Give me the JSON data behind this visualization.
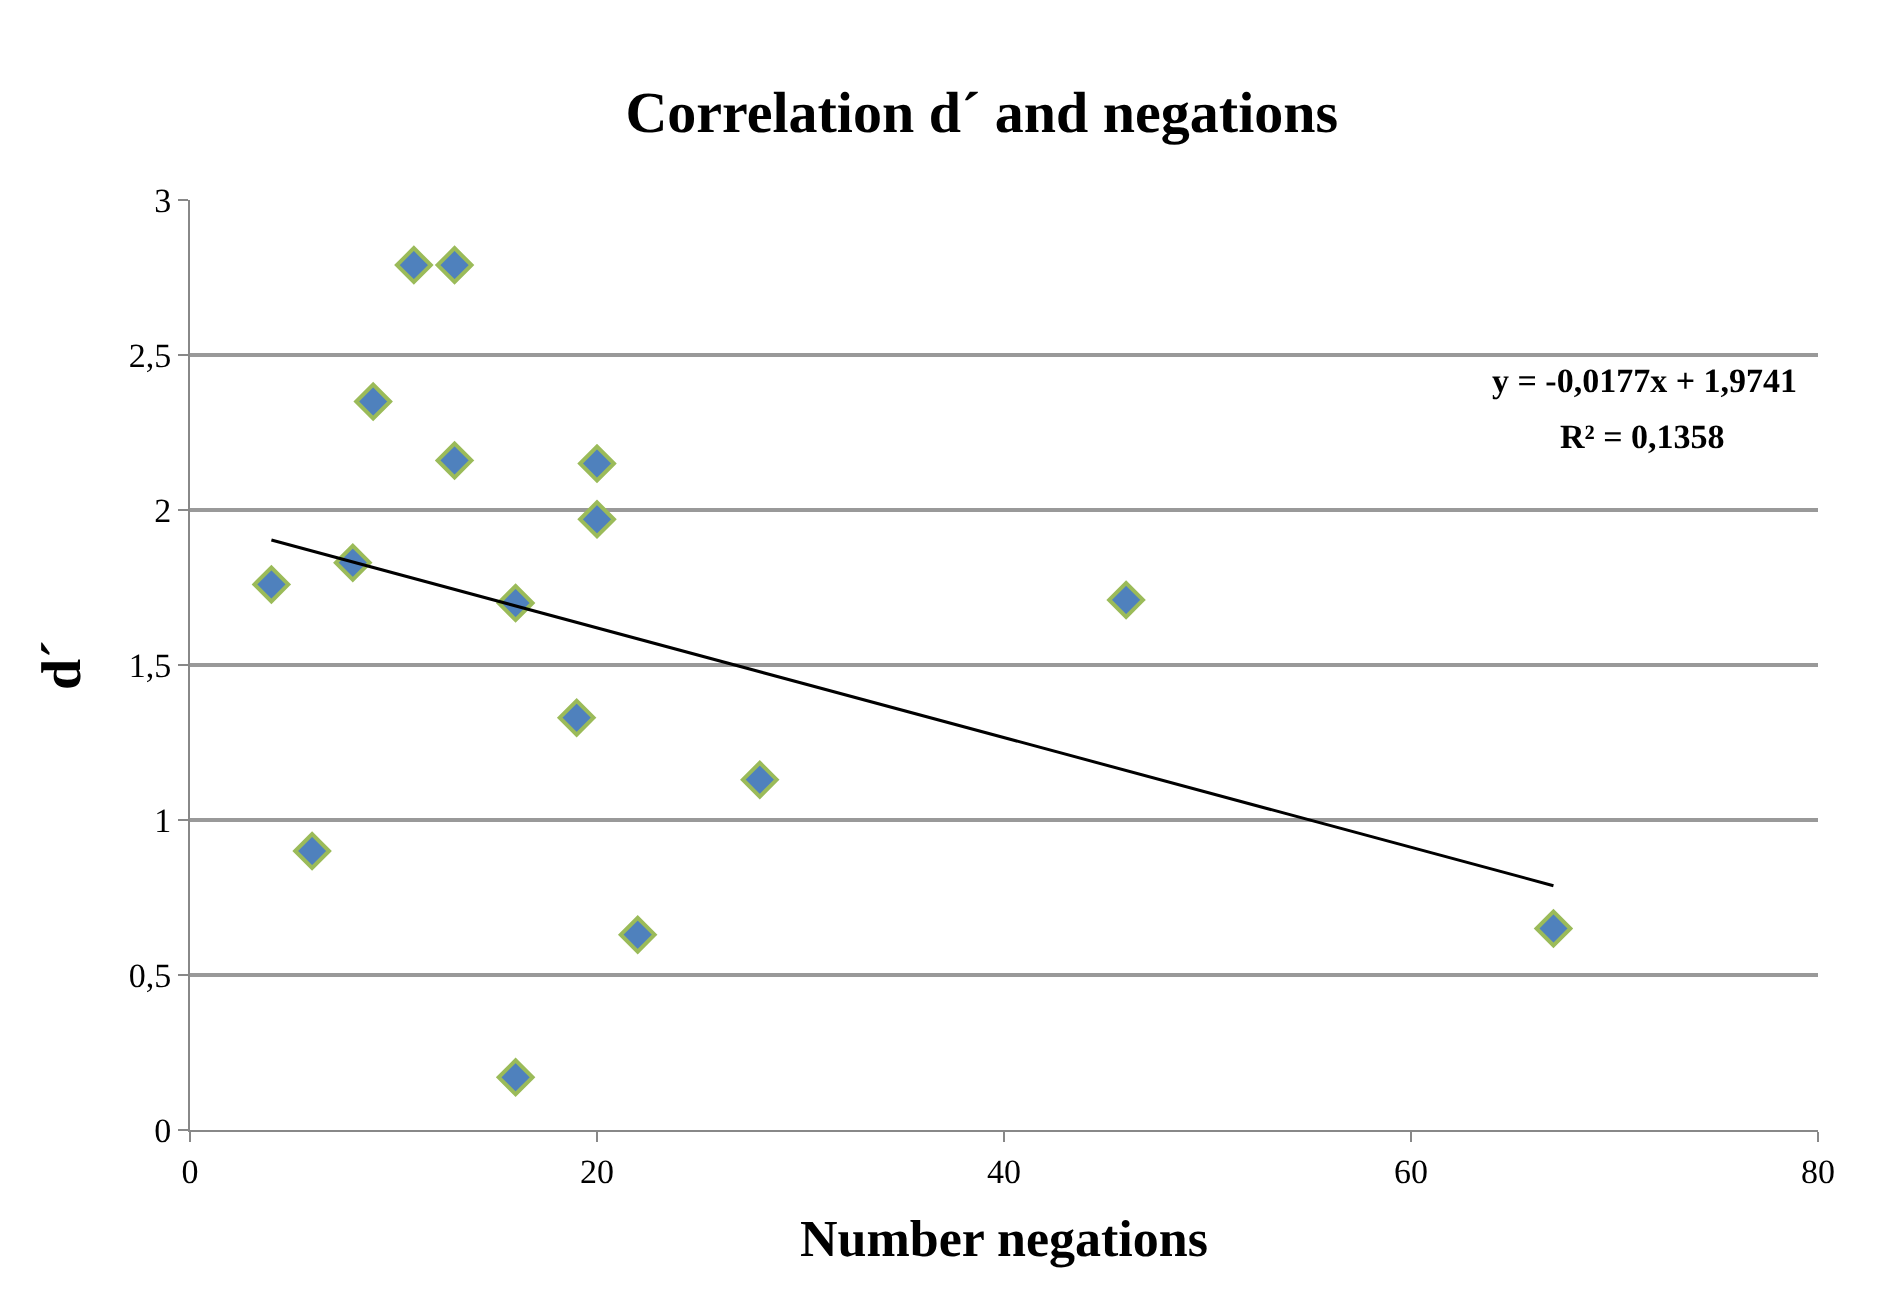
{
  "chart_data": {
    "type": "scatter",
    "title": "Correlation d´ and negations",
    "xlabel": "Number negations",
    "ylabel": "d´",
    "series": [
      {
        "color": "#4f81bd",
        "marker": "diamond",
        "x": [
          4,
          6,
          8,
          9,
          11,
          13,
          13,
          16,
          16,
          19,
          20,
          20,
          22,
          28,
          46,
          67
        ],
        "values": [
          1.76,
          0.9,
          1.83,
          2.35,
          2.79,
          2.79,
          2.16,
          1.7,
          0.17,
          1.33,
          2.15,
          1.97,
          0.63,
          1.13,
          1.71,
          0.65
        ]
      },
      {
        "type": "line",
        "color": "#000000",
        "marker": "none",
        "line_style": "solid",
        "x": [
          4,
          67
        ],
        "values": [
          1.903,
          0.788
        ]
      }
    ],
    "annotations": [
      "y = -0,0177x + 1,9741",
      "R² = 0,1358"
    ],
    "xlim": [
      0,
      80
    ],
    "xticks": [
      0,
      20,
      40,
      60,
      80
    ],
    "ylim": [
      0,
      3
    ],
    "yticks": [
      0,
      {
        "value": 0.5,
        "label": "0,5"
      },
      1,
      {
        "value": 1.5,
        "label": "1,5"
      },
      2,
      {
        "value": 2.5,
        "label": "2,5"
      },
      3
    ],
    "grid": "y"
  }
}
